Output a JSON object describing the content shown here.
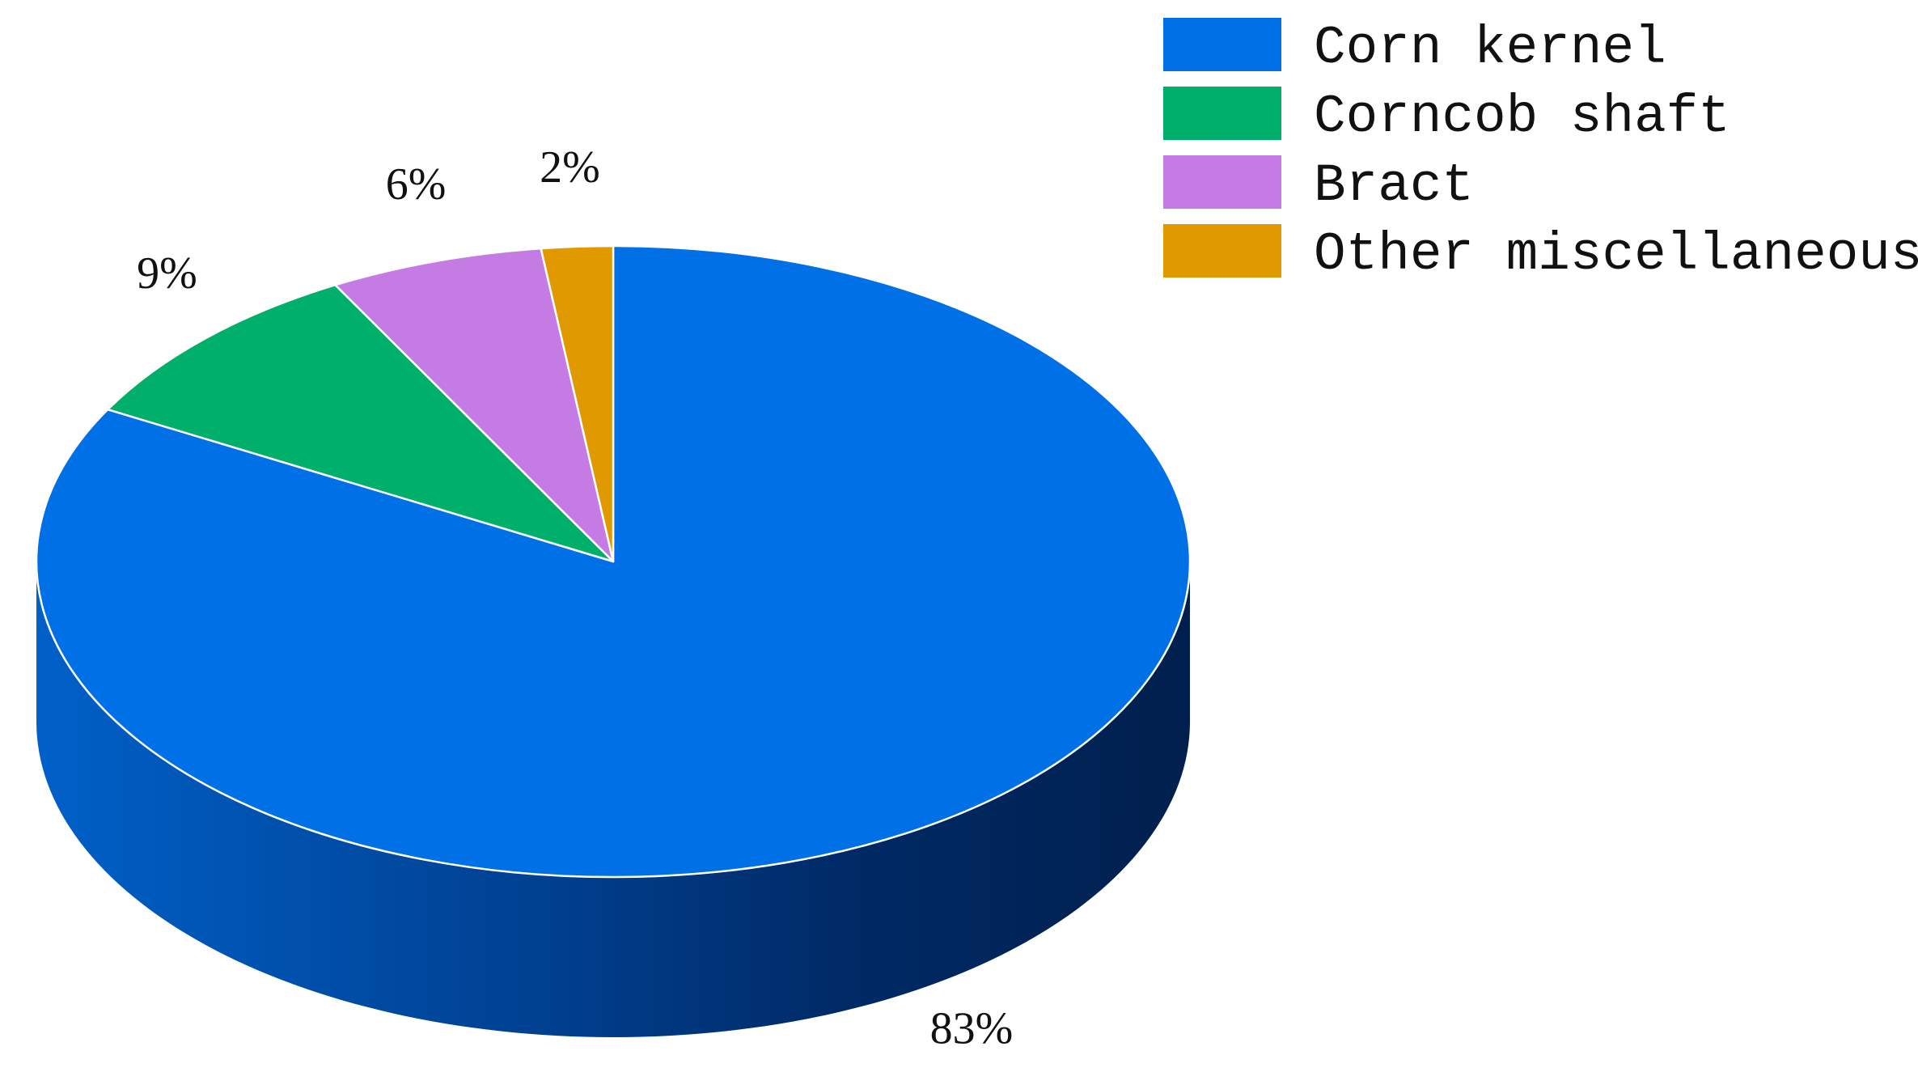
{
  "chart_data": {
    "type": "pie",
    "style": "3d",
    "categories": [
      "Corn kernel",
      "Corncob shaft",
      "Bract",
      "Other miscellaneous"
    ],
    "values": [
      83,
      9,
      6,
      2
    ],
    "value_labels": [
      "83%",
      "9%",
      "6%",
      "2%"
    ],
    "colors": [
      "#0070e6",
      "#00b06a",
      "#c57be4",
      "#e09a00"
    ],
    "start": "12 o'clock",
    "direction": "clockwise",
    "legend_position": "top-right",
    "title": ""
  }
}
